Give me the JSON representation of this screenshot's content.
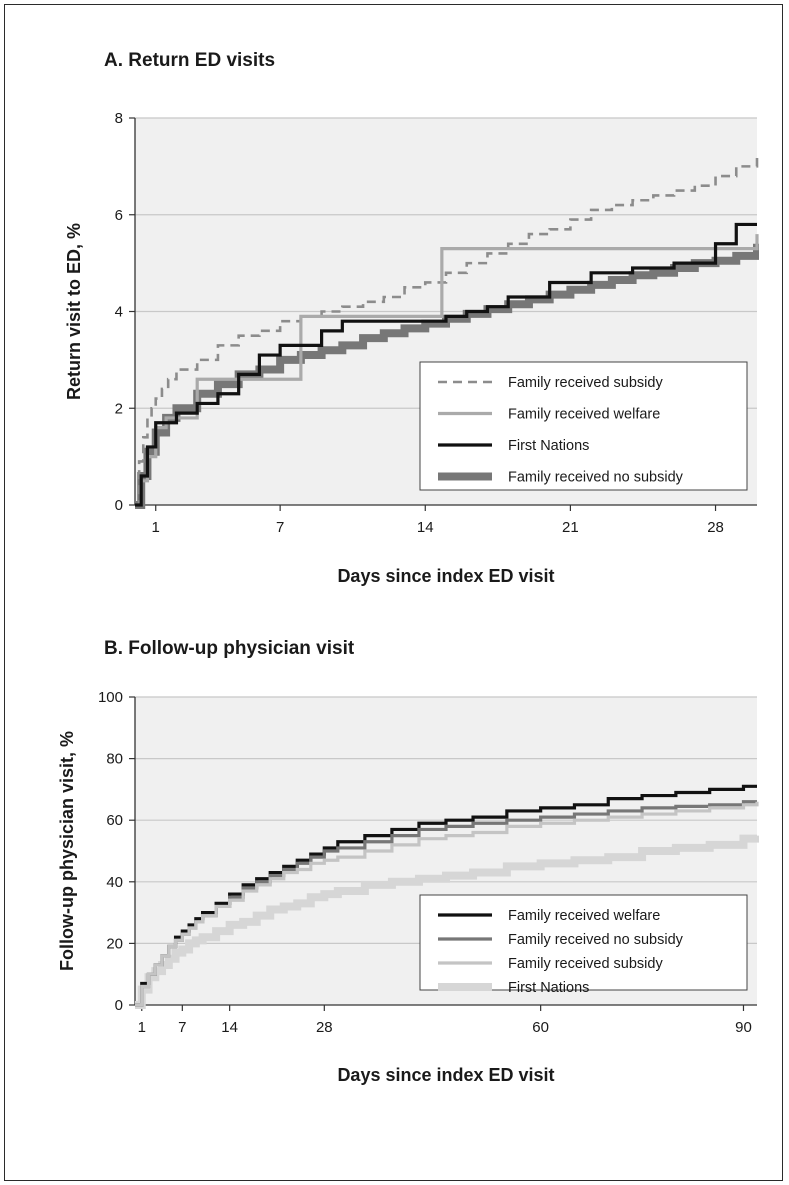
{
  "chart_data": [
    {
      "type": "line",
      "title": "A. Return ED visits",
      "xlabel": "Days since index ED visit",
      "ylabel": "Return visit to ED, %",
      "xlim": [
        0,
        30
      ],
      "ylim": [
        0,
        8
      ],
      "x_ticks": [
        1,
        7,
        14,
        21,
        28
      ],
      "y_ticks": [
        0,
        2,
        4,
        6,
        8
      ],
      "grid": true,
      "legend_position": "bottom-right",
      "series": [
        {
          "name": "Family received subsidy",
          "style": "dashed",
          "color": "#8c8c8c",
          "x": [
            0,
            0.2,
            0.4,
            0.6,
            0.8,
            1,
            1.3,
            1.6,
            2,
            3,
            4,
            5,
            6,
            7,
            8,
            9,
            10,
            11,
            12,
            13,
            14,
            15,
            16,
            17,
            18,
            19,
            20,
            21,
            22,
            23,
            24,
            25,
            26,
            27,
            28,
            29,
            30
          ],
          "y": [
            0,
            0.9,
            1.4,
            1.8,
            2.0,
            2.2,
            2.4,
            2.6,
            2.8,
            3.0,
            3.3,
            3.5,
            3.6,
            3.8,
            3.9,
            4.0,
            4.1,
            4.2,
            4.3,
            4.5,
            4.6,
            4.8,
            5.0,
            5.2,
            5.4,
            5.6,
            5.7,
            5.9,
            6.1,
            6.2,
            6.3,
            6.4,
            6.5,
            6.6,
            6.8,
            7.0,
            7.2
          ]
        },
        {
          "name": "Family received welfare",
          "style": "solid",
          "color": "#aaaaaa",
          "x": [
            0,
            0.3,
            0.6,
            1,
            1.5,
            3,
            6,
            8,
            14,
            14.8,
            25,
            29.5,
            30
          ],
          "y": [
            0,
            0.5,
            1.0,
            1.6,
            1.8,
            2.6,
            2.6,
            3.9,
            3.9,
            5.3,
            5.3,
            5.3,
            5.6
          ]
        },
        {
          "name": "First Nations",
          "style": "solid",
          "color": "#111111",
          "x": [
            0,
            0.3,
            0.6,
            1,
            2,
            3,
            4,
            5,
            6,
            7,
            8,
            9,
            10,
            12,
            14,
            15,
            16,
            17,
            18,
            20,
            22,
            24,
            26,
            28,
            29,
            30
          ],
          "y": [
            0,
            0.6,
            1.2,
            1.7,
            1.9,
            2.1,
            2.3,
            2.7,
            3.1,
            3.3,
            3.3,
            3.6,
            3.8,
            3.8,
            3.8,
            3.9,
            4.0,
            4.1,
            4.3,
            4.6,
            4.8,
            4.9,
            5.0,
            5.4,
            5.8,
            5.8
          ]
        },
        {
          "name": "Family received no subsidy",
          "style": "thick",
          "color": "#777777",
          "x": [
            0,
            0.3,
            0.6,
            1,
            1.5,
            2,
            3,
            4,
            5,
            6,
            7,
            8,
            9,
            10,
            11,
            12,
            13,
            14,
            15,
            16,
            17,
            18,
            19,
            20,
            21,
            22,
            23,
            24,
            25,
            26,
            27,
            28,
            29,
            30
          ],
          "y": [
            0,
            0.6,
            1.1,
            1.5,
            1.8,
            2.0,
            2.3,
            2.5,
            2.7,
            2.8,
            3.0,
            3.1,
            3.2,
            3.3,
            3.45,
            3.55,
            3.65,
            3.75,
            3.85,
            3.95,
            4.05,
            4.15,
            4.25,
            4.35,
            4.45,
            4.55,
            4.65,
            4.75,
            4.8,
            4.9,
            5.0,
            5.05,
            5.15,
            5.4
          ]
        }
      ]
    },
    {
      "type": "line",
      "title": "B. Follow-up physician visit",
      "xlabel": "Days since index ED visit",
      "ylabel": "Follow-up physician visit, %",
      "xlim": [
        0,
        92
      ],
      "ylim": [
        0,
        100
      ],
      "x_ticks": [
        1,
        7,
        14,
        28,
        60,
        90
      ],
      "y_ticks": [
        0,
        20,
        40,
        60,
        80,
        100
      ],
      "grid": true,
      "legend_position": "bottom-right",
      "series": [
        {
          "name": "Family received welfare",
          "style": "solid",
          "color": "#111111",
          "x": [
            0,
            1,
            2,
            3,
            4,
            5,
            6,
            7,
            8,
            9,
            10,
            12,
            14,
            16,
            18,
            20,
            22,
            24,
            26,
            28,
            30,
            34,
            38,
            42,
            46,
            50,
            55,
            60,
            65,
            70,
            75,
            80,
            85,
            90,
            92
          ],
          "y": [
            0,
            7,
            10,
            13,
            16,
            19,
            22,
            24,
            26,
            28,
            30,
            33,
            36,
            39,
            41,
            43,
            45,
            47,
            49,
            51,
            53,
            55,
            57,
            59,
            60,
            61,
            63,
            64,
            65,
            67,
            68,
            69,
            70,
            71,
            71
          ]
        },
        {
          "name": "Family received no subsidy",
          "style": "solid",
          "color": "#777777",
          "x": [
            0,
            1,
            2,
            3,
            4,
            5,
            6,
            7,
            8,
            9,
            10,
            12,
            14,
            16,
            18,
            20,
            22,
            24,
            26,
            28,
            30,
            34,
            38,
            42,
            46,
            50,
            55,
            60,
            65,
            70,
            75,
            80,
            85,
            90,
            92
          ],
          "y": [
            0,
            6,
            10,
            13,
            16,
            19,
            21,
            23,
            25,
            27,
            29,
            32,
            35,
            38,
            40,
            42,
            44,
            46,
            48,
            50,
            51,
            53,
            55,
            57,
            58,
            59,
            60,
            61,
            62,
            63,
            64,
            64.5,
            65,
            66,
            66
          ]
        },
        {
          "name": "Family received subsidy",
          "style": "solid",
          "color": "#c4c4c4",
          "x": [
            0,
            1,
            2,
            3,
            4,
            5,
            6,
            7,
            8,
            9,
            10,
            12,
            14,
            16,
            18,
            20,
            22,
            24,
            26,
            28,
            30,
            34,
            38,
            42,
            46,
            50,
            55,
            60,
            65,
            70,
            75,
            80,
            85,
            90,
            92
          ],
          "y": [
            0,
            6,
            10,
            13,
            16,
            19,
            21,
            23,
            25,
            27,
            29,
            32,
            34,
            37,
            39,
            41,
            43,
            44,
            46,
            47,
            48,
            50,
            52,
            54,
            55,
            56,
            58,
            59,
            60,
            61,
            62,
            63,
            64,
            65,
            66
          ]
        },
        {
          "name": "First Nations",
          "style": "thick",
          "color": "#d6d6d6",
          "x": [
            0,
            1,
            2,
            3,
            4,
            5,
            6,
            7,
            8,
            9,
            10,
            12,
            14,
            16,
            18,
            20,
            22,
            24,
            26,
            28,
            30,
            34,
            38,
            42,
            46,
            50,
            55,
            60,
            65,
            70,
            75,
            80,
            85,
            90,
            92
          ],
          "y": [
            0,
            5,
            9,
            11,
            13,
            15,
            17,
            18,
            20,
            21,
            22,
            24,
            26,
            27,
            29,
            31,
            32,
            33,
            35,
            36,
            37,
            39,
            40,
            41,
            42,
            43,
            45,
            46,
            47,
            48,
            50,
            51,
            52,
            54,
            55
          ]
        }
      ]
    }
  ]
}
